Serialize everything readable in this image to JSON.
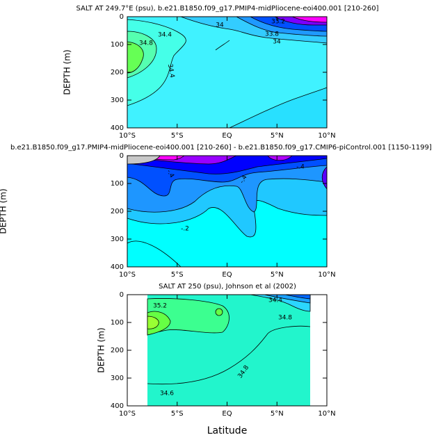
{
  "chart_data": [
    {
      "type": "contour",
      "title": "SALT AT 249.7°E (psu), b.e21.B1850.f09_g17.PMIP4-midPliocene-eoi400.001 [210-260]",
      "ylabel": "DEPTH (m)",
      "xlim": [
        -10,
        10
      ],
      "ylim": [
        0,
        400
      ],
      "y_inverted": true,
      "xticks": [
        {
          "value": -10,
          "label": "10°S"
        },
        {
          "value": -5,
          "label": "5°S"
        },
        {
          "value": 0,
          "label": "EQ"
        },
        {
          "value": 5,
          "label": "5°N"
        },
        {
          "value": 10,
          "label": "10°N"
        }
      ],
      "yticks": [
        0,
        100,
        200,
        300,
        400
      ],
      "contour_labels": [
        "34.4",
        "34",
        "33.8",
        "34",
        "34.8",
        "34.4",
        "33.2"
      ]
    },
    {
      "type": "contour",
      "title": "b.e21.B1850.f09_g17.PMIP4-midPliocene-eoi400.001 [210-260] - b.e21.B1850.f09_g17.CMIP6-piControl.001 [1150-1199]",
      "ylabel": "DEPTH (m)",
      "xlim": [
        -10,
        10
      ],
      "ylim": [
        0,
        400
      ],
      "y_inverted": true,
      "xticks": [
        {
          "value": -10,
          "label": "10°S"
        },
        {
          "value": -5,
          "label": "5°S"
        },
        {
          "value": 0,
          "label": "EQ"
        },
        {
          "value": 5,
          "label": "5°N"
        },
        {
          "value": 10,
          "label": "10°N"
        }
      ],
      "yticks": [
        0,
        100,
        200,
        300,
        400
      ],
      "contour_labels": [
        "-.4",
        "-.4",
        "-.4",
        "-.2"
      ]
    },
    {
      "type": "contour",
      "title": "SALT AT 250 (psu), Johnson et al (2002)",
      "ylabel": "DEPTH (m)",
      "xlabel": "Latitude",
      "xlim": [
        -10,
        10
      ],
      "ylim": [
        0,
        400
      ],
      "y_inverted": true,
      "xticks": [
        {
          "value": -10,
          "label": "10°S"
        },
        {
          "value": -5,
          "label": "5°S"
        },
        {
          "value": 0,
          "label": "EQ"
        },
        {
          "value": 5,
          "label": "5°N"
        },
        {
          "value": 10,
          "label": "10°N"
        }
      ],
      "yticks": [
        0,
        100,
        200,
        300,
        400
      ],
      "contour_labels": [
        "35.2",
        "34.4",
        "34.8",
        "34.8",
        "34.6"
      ]
    }
  ]
}
